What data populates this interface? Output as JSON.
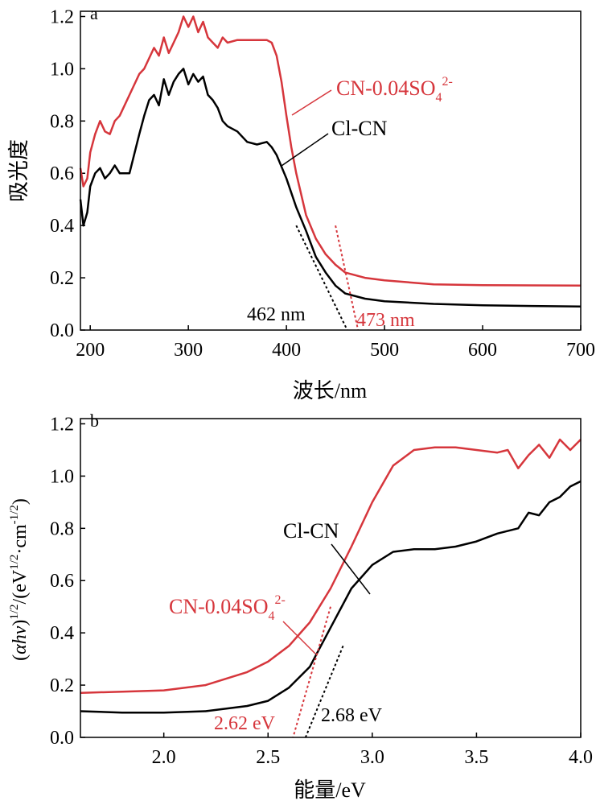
{
  "colors": {
    "red": "#d6363c",
    "black": "#000000"
  },
  "chart_data": [
    {
      "type": "line",
      "panel_label": "a",
      "xlabel": "波长/nm",
      "ylabel": "吸光度",
      "xlim": [
        190,
        700
      ],
      "ylim": [
        0.0,
        1.22
      ],
      "xticks": [
        200,
        300,
        400,
        500,
        600,
        700
      ],
      "yticks": [
        0.0,
        0.2,
        0.4,
        0.6,
        0.8,
        1.0,
        1.2
      ],
      "ytick_labels": [
        "0.0",
        "0.2",
        "0.4",
        "0.6",
        "0.8",
        "1.0",
        "1.2"
      ],
      "series": [
        {
          "name": "CN-0.04SO4 2-",
          "label_main": "CN-0.04SO",
          "label_sub": "4",
          "label_sup": "2-",
          "color": "#d6363c",
          "x": [
            190,
            193,
            197,
            200,
            205,
            210,
            215,
            220,
            225,
            230,
            240,
            250,
            255,
            260,
            265,
            270,
            275,
            280,
            285,
            290,
            295,
            300,
            305,
            310,
            315,
            320,
            325,
            330,
            335,
            340,
            350,
            360,
            370,
            380,
            385,
            390,
            395,
            400,
            405,
            410,
            420,
            430,
            440,
            450,
            460,
            480,
            500,
            550,
            600,
            650,
            700
          ],
          "y": [
            0.62,
            0.55,
            0.58,
            0.68,
            0.75,
            0.8,
            0.76,
            0.75,
            0.8,
            0.82,
            0.9,
            0.98,
            1.0,
            1.04,
            1.08,
            1.05,
            1.12,
            1.06,
            1.1,
            1.14,
            1.2,
            1.16,
            1.2,
            1.14,
            1.18,
            1.12,
            1.1,
            1.08,
            1.12,
            1.1,
            1.11,
            1.11,
            1.11,
            1.11,
            1.1,
            1.05,
            0.95,
            0.82,
            0.7,
            0.6,
            0.44,
            0.35,
            0.29,
            0.25,
            0.22,
            0.2,
            0.19,
            0.175,
            0.172,
            0.171,
            0.17
          ]
        },
        {
          "name": "Cl-CN",
          "label_main": "Cl-CN",
          "color": "#000000",
          "x": [
            190,
            193,
            197,
            200,
            205,
            210,
            215,
            220,
            225,
            230,
            240,
            250,
            255,
            260,
            265,
            270,
            275,
            280,
            285,
            290,
            295,
            300,
            305,
            310,
            315,
            320,
            325,
            330,
            335,
            340,
            350,
            360,
            370,
            380,
            385,
            390,
            400,
            410,
            420,
            430,
            440,
            450,
            460,
            480,
            500,
            550,
            600,
            650,
            700
          ],
          "y": [
            0.5,
            0.4,
            0.45,
            0.55,
            0.6,
            0.62,
            0.58,
            0.6,
            0.63,
            0.6,
            0.6,
            0.75,
            0.82,
            0.88,
            0.9,
            0.86,
            0.96,
            0.9,
            0.95,
            0.98,
            1.0,
            0.94,
            0.98,
            0.95,
            0.97,
            0.9,
            0.88,
            0.85,
            0.8,
            0.78,
            0.76,
            0.72,
            0.71,
            0.72,
            0.7,
            0.67,
            0.58,
            0.47,
            0.38,
            0.28,
            0.22,
            0.17,
            0.14,
            0.12,
            0.11,
            0.1,
            0.095,
            0.092,
            0.09
          ]
        }
      ],
      "tangent_lines": [
        {
          "color": "#000000",
          "from": [
            410,
            0.4
          ],
          "to": [
            462,
            0.0
          ]
        },
        {
          "color": "#d6363c",
          "from": [
            450,
            0.4
          ],
          "to": [
            473,
            0.0
          ]
        }
      ],
      "annotations": [
        {
          "text": "462 nm",
          "color": "#000000"
        },
        {
          "text": "473 nm",
          "color": "#d6363c"
        }
      ]
    },
    {
      "type": "line",
      "panel_label": "b",
      "xlabel": "能量/eV",
      "ylabel": "(αhν)1/2/(eV1/2·cm-1/2)",
      "ylabel_parts": {
        "p1": "(",
        "alpha_hv": "αhν",
        "p2": ")",
        "sup1": "1/2",
        "p3": "/(eV",
        "sup2": "1/2",
        "p4": "·cm",
        "sup3": "-1/2",
        "p5": ")"
      },
      "xlim": [
        1.6,
        4.0
      ],
      "ylim": [
        0.0,
        1.22
      ],
      "xticks": [
        2.0,
        2.5,
        3.0,
        3.5,
        4.0
      ],
      "xtick_labels": [
        "2.0",
        "2.5",
        "3.0",
        "3.5",
        "4.0"
      ],
      "yticks": [
        0.0,
        0.2,
        0.4,
        0.6,
        0.8,
        1.0,
        1.2
      ],
      "ytick_labels": [
        "0.0",
        "0.2",
        "0.4",
        "0.6",
        "0.8",
        "1.0",
        "1.2"
      ],
      "series": [
        {
          "name": "CN-0.04SO4 2-",
          "label_main": "CN-0.04SO",
          "label_sub": "4",
          "label_sup": "2-",
          "color": "#d6363c",
          "x": [
            1.6,
            1.8,
            2.0,
            2.2,
            2.4,
            2.5,
            2.6,
            2.7,
            2.8,
            2.9,
            3.0,
            3.1,
            3.2,
            3.3,
            3.4,
            3.5,
            3.6,
            3.65,
            3.7,
            3.75,
            3.8,
            3.85,
            3.9,
            3.95,
            4.0
          ],
          "y": [
            0.17,
            0.175,
            0.18,
            0.2,
            0.25,
            0.29,
            0.35,
            0.44,
            0.57,
            0.73,
            0.9,
            1.04,
            1.1,
            1.11,
            1.11,
            1.1,
            1.09,
            1.1,
            1.03,
            1.08,
            1.12,
            1.07,
            1.14,
            1.1,
            1.14
          ]
        },
        {
          "name": "Cl-CN",
          "label_main": "Cl-CN",
          "color": "#000000",
          "x": [
            1.6,
            1.8,
            2.0,
            2.2,
            2.4,
            2.5,
            2.6,
            2.7,
            2.8,
            2.9,
            3.0,
            3.1,
            3.2,
            3.3,
            3.4,
            3.5,
            3.6,
            3.7,
            3.75,
            3.8,
            3.85,
            3.9,
            3.95,
            4.0
          ],
          "y": [
            0.1,
            0.095,
            0.095,
            0.1,
            0.12,
            0.14,
            0.19,
            0.27,
            0.42,
            0.57,
            0.66,
            0.71,
            0.72,
            0.72,
            0.73,
            0.75,
            0.78,
            0.8,
            0.86,
            0.85,
            0.9,
            0.92,
            0.96,
            0.98
          ]
        }
      ],
      "tangent_lines": [
        {
          "color": "#d6363c",
          "from": [
            2.8,
            0.5
          ],
          "to": [
            2.62,
            0.0
          ]
        },
        {
          "color": "#000000",
          "from": [
            2.86,
            0.35
          ],
          "to": [
            2.68,
            0.0
          ]
        }
      ],
      "annotations": [
        {
          "text": "2.62 eV",
          "color": "#d6363c"
        },
        {
          "text": "2.68 eV",
          "color": "#000000"
        }
      ]
    }
  ]
}
